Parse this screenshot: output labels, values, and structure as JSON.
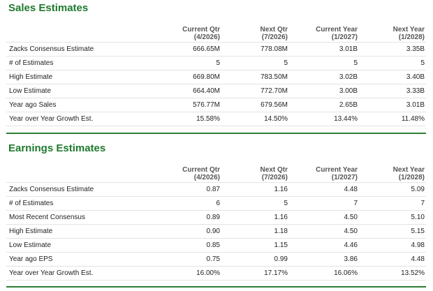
{
  "sales": {
    "title": "Sales Estimates",
    "columns": [
      {
        "name": "Current Qtr",
        "period": "(4/2026)"
      },
      {
        "name": "Next Qtr",
        "period": "(7/2026)"
      },
      {
        "name": "Current Year",
        "period": "(1/2027)"
      },
      {
        "name": "Next Year",
        "period": "(1/2028)"
      }
    ],
    "rows": [
      {
        "label": "Zacks Consensus Estimate",
        "values": [
          "666.65M",
          "778.08M",
          "3.01B",
          "3.35B"
        ]
      },
      {
        "label": "# of Estimates",
        "values": [
          "5",
          "5",
          "5",
          "5"
        ]
      },
      {
        "label": "High Estimate",
        "values": [
          "669.80M",
          "783.50M",
          "3.02B",
          "3.40B"
        ]
      },
      {
        "label": "Low Estimate",
        "values": [
          "664.40M",
          "772.70M",
          "3.00B",
          "3.33B"
        ]
      },
      {
        "label": "Year ago Sales",
        "values": [
          "576.77M",
          "679.56M",
          "2.65B",
          "3.01B"
        ]
      },
      {
        "label": "Year over Year Growth Est.",
        "values": [
          "15.58%",
          "14.50%",
          "13.44%",
          "11.48%"
        ]
      }
    ]
  },
  "earnings": {
    "title": "Earnings Estimates",
    "columns": [
      {
        "name": "Current Qtr",
        "period": "(4/2026)"
      },
      {
        "name": "Next Qtr",
        "period": "(7/2026)"
      },
      {
        "name": "Current Year",
        "period": "(1/2027)"
      },
      {
        "name": "Next Year",
        "period": "(1/2028)"
      }
    ],
    "rows": [
      {
        "label": "Zacks Consensus Estimate",
        "values": [
          "0.87",
          "1.16",
          "4.48",
          "5.09"
        ]
      },
      {
        "label": "# of Estimates",
        "values": [
          "6",
          "5",
          "7",
          "7"
        ]
      },
      {
        "label": "Most Recent Consensus",
        "values": [
          "0.89",
          "1.16",
          "4.50",
          "5.10"
        ]
      },
      {
        "label": "High Estimate",
        "values": [
          "0.90",
          "1.18",
          "4.50",
          "5.15"
        ]
      },
      {
        "label": "Low Estimate",
        "values": [
          "0.85",
          "1.15",
          "4.46",
          "4.98"
        ]
      },
      {
        "label": "Year ago EPS",
        "values": [
          "0.75",
          "0.99",
          "3.86",
          "4.48"
        ]
      },
      {
        "label": "Year over Year Growth Est.",
        "values": [
          "16.00%",
          "17.17%",
          "16.06%",
          "13.52%"
        ]
      }
    ]
  },
  "colors": {
    "title_green": "#1f7a2e",
    "rule_green": "#2e7d32"
  }
}
